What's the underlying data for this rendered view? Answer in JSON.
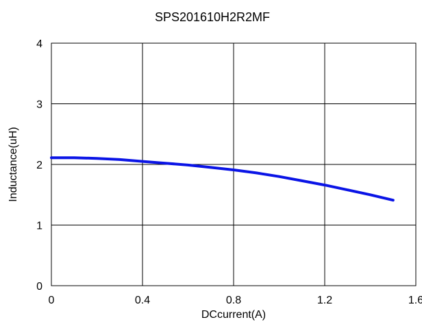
{
  "chart_data": {
    "type": "line",
    "title": "SPS201610H2R2MF",
    "xlabel": "DCcurrent(A)",
    "ylabel": "Inductance(uH)",
    "xlim": [
      0,
      1.6
    ],
    "ylim": [
      0,
      4
    ],
    "xticks": [
      0,
      0.4,
      0.8,
      1.2,
      1.6
    ],
    "xtick_labels": [
      "0",
      "0.4",
      "0.8",
      "1.2",
      "1.6"
    ],
    "yticks": [
      0,
      1,
      2,
      3,
      4
    ],
    "ytick_labels": [
      "0",
      "1",
      "2",
      "3",
      "4"
    ],
    "grid": true,
    "legend": "none",
    "series": [
      {
        "color": "#0a14e6",
        "x": [
          0,
          0.1,
          0.2,
          0.3,
          0.4,
          0.5,
          0.6,
          0.7,
          0.8,
          0.9,
          1.0,
          1.1,
          1.2,
          1.3,
          1.4,
          1.5
        ],
        "y": [
          2.11,
          2.11,
          2.1,
          2.08,
          2.05,
          2.02,
          1.99,
          1.95,
          1.91,
          1.86,
          1.8,
          1.73,
          1.66,
          1.58,
          1.5,
          1.41
        ]
      }
    ]
  }
}
